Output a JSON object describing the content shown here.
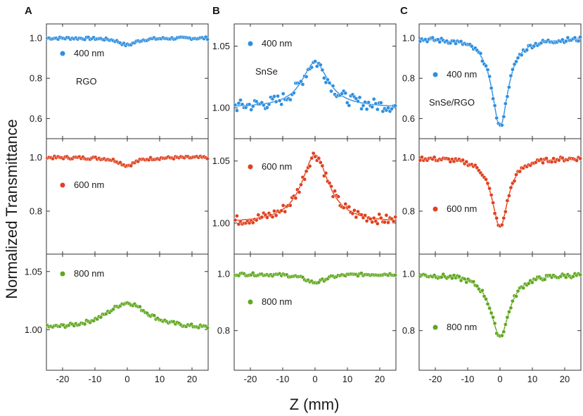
{
  "figure": {
    "y_axis_title": "Normalized Transmittance",
    "x_axis_title": "Z (mm)"
  },
  "colors": {
    "blue": "#2f8fe0",
    "red": "#e0401e",
    "green": "#5fa81e"
  },
  "chart_data": [
    {
      "type": "scatter",
      "panel": "A",
      "sample": "RGO",
      "x_ticks": [
        -20,
        -10,
        0,
        10,
        20
      ],
      "xlim": [
        -25,
        25
      ],
      "subplots": [
        {
          "wavelength": "400 nm",
          "color": "blue",
          "ylim": [
            0.5,
            1.07
          ],
          "yticks": [
            "0.6",
            "0.8",
            "1.0"
          ],
          "ytick_values": [
            0.6,
            0.8,
            1.0
          ],
          "baseline": 1.0,
          "peak": -0.035,
          "width": 3.0,
          "noise": 0.006
        },
        {
          "wavelength": "600 nm",
          "color": "red",
          "ylim": [
            0.64,
            1.07
          ],
          "yticks": [
            "0.8",
            "1.0"
          ],
          "ytick_values": [
            0.8,
            1.0
          ],
          "baseline": 1.0,
          "peak": -0.03,
          "width": 3.0,
          "noise": 0.005
        },
        {
          "wavelength": "800 nm",
          "color": "green",
          "ylim": [
            0.965,
            1.065
          ],
          "yticks": [
            "1.00",
            "1.05"
          ],
          "ytick_values": [
            1.0,
            1.05
          ],
          "baseline": 1.0,
          "peak": 0.023,
          "width": 8.0,
          "noise": 0.0015
        }
      ]
    },
    {
      "type": "scatter",
      "panel": "B",
      "sample": "SnSe",
      "x_ticks": [
        -20,
        -10,
        0,
        10,
        20
      ],
      "xlim": [
        -25,
        25
      ],
      "subplots": [
        {
          "wavelength": "400 nm",
          "color": "blue",
          "ylim": [
            0.975,
            1.068
          ],
          "yticks": [
            "1.00",
            "1.05"
          ],
          "ytick_values": [
            1.0,
            1.05
          ],
          "baseline": 1.0,
          "peak": 0.037,
          "width": 5.0,
          "noise": 0.005
        },
        {
          "wavelength": "600 nm",
          "color": "red",
          "ylim": [
            0.975,
            1.068
          ],
          "yticks": [
            "1.00",
            "1.05"
          ],
          "ytick_values": [
            1.0,
            1.05
          ],
          "baseline": 1.0,
          "peak": 0.055,
          "width": 5.0,
          "noise": 0.004
        },
        {
          "wavelength": "800 nm",
          "color": "green",
          "ylim": [
            0.66,
            1.07
          ],
          "yticks": [
            "0.8",
            "1.0"
          ],
          "ytick_values": [
            0.8,
            1.0
          ],
          "baseline": 1.0,
          "peak": -0.03,
          "width": 4.0,
          "noise": 0.005
        }
      ]
    },
    {
      "type": "scatter",
      "panel": "C",
      "sample": "SnSe/RGO",
      "x_ticks": [
        -20,
        -10,
        0,
        10,
        20
      ],
      "xlim": [
        -25,
        25
      ],
      "subplots": [
        {
          "wavelength": "400 nm",
          "color": "blue",
          "ylim": [
            0.5,
            1.07
          ],
          "yticks": [
            "0.6",
            "0.8",
            "1.0"
          ],
          "ytick_values": [
            0.6,
            0.8,
            1.0
          ],
          "baseline": 1.0,
          "peak": -0.44,
          "width": 3.0,
          "noise": 0.012
        },
        {
          "wavelength": "600 nm",
          "color": "red",
          "ylim": [
            0.64,
            1.07
          ],
          "yticks": [
            "0.8",
            "1.0"
          ],
          "ytick_values": [
            0.8,
            1.0
          ],
          "baseline": 1.0,
          "peak": -0.26,
          "width": 3.0,
          "noise": 0.008
        },
        {
          "wavelength": "800 nm",
          "color": "green",
          "ylim": [
            0.66,
            1.07
          ],
          "yticks": [
            "0.8",
            "1.0"
          ],
          "ytick_values": [
            0.8,
            1.0
          ],
          "baseline": 1.0,
          "peak": -0.22,
          "width": 3.5,
          "noise": 0.008
        }
      ]
    }
  ]
}
